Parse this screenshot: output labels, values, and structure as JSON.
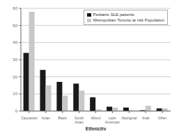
{
  "chart_data": {
    "type": "bar",
    "xlabel": "Ethnicity",
    "categories": [
      "Caucasian",
      "Asian",
      "Black",
      "South\nAsian",
      "Mixed",
      "Latin\nAmerican",
      "Aboriginal",
      "Arab",
      "Other"
    ],
    "series": [
      {
        "name": "Pediatric SLE patients",
        "color": "#1a1a1a",
        "values": [
          34,
          24,
          17,
          16,
          8,
          2.5,
          2,
          0.5,
          1.5
        ]
      },
      {
        "name": "Metropolitan Toronto at risk Population",
        "color": "#c8c8c8",
        "values": [
          58,
          15,
          9,
          12,
          1,
          2,
          0.5,
          3,
          1.5
        ]
      }
    ],
    "ylim": [
      0,
      60
    ],
    "yticks": [
      0,
      10,
      20,
      30,
      40,
      50,
      60
    ],
    "grid": true,
    "legend": "upper right"
  }
}
